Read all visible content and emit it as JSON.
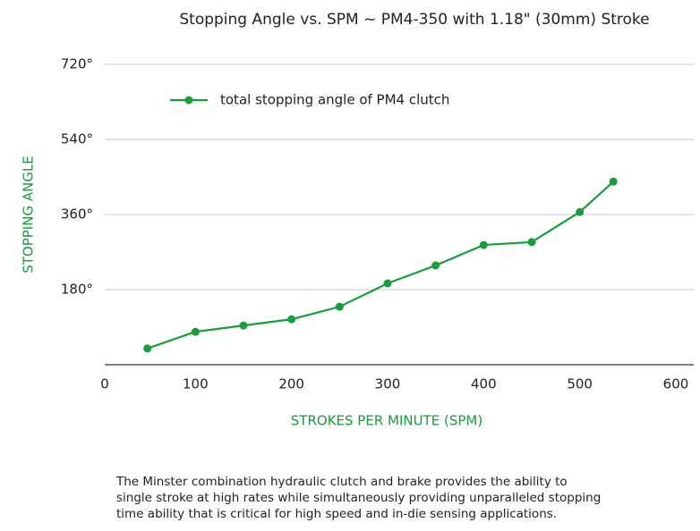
{
  "chart_data": {
    "type": "line",
    "title": "Stopping Angle vs. SPM ~ PM4-350 with 1.18\" (30mm) Stroke",
    "x_label": "STROKES PER MINUTE (SPM)",
    "y_label": "STOPPING ANGLE",
    "x": [
      50,
      100,
      150,
      200,
      250,
      300,
      350,
      400,
      450,
      500,
      535
    ],
    "series": [
      {
        "name": "total stopping angle of PM4 clutch",
        "color": "#1a9c3e",
        "values": [
          39,
          79,
          94,
          109,
          139,
          195,
          238,
          287,
          294,
          366,
          439
        ]
      }
    ],
    "xlim": [
      0,
      600
    ],
    "xticks": [
      0,
      100,
      200,
      300,
      400,
      500,
      600
    ],
    "ylim": [
      0,
      720
    ],
    "yticks": [
      {
        "value": 180,
        "label": "180°"
      },
      {
        "value": 360,
        "label": "360°"
      },
      {
        "value": 540,
        "label": "540°"
      },
      {
        "value": 720,
        "label": "720°"
      }
    ],
    "grid": true,
    "legend": "top-left",
    "description": [
      "The Minster combination hydraulic clutch and brake provides the ability to",
      "single stroke at high rates while simultaneously providing unparalleled stopping",
      "time ability that is critical for high speed and in-die sensing applications."
    ]
  }
}
